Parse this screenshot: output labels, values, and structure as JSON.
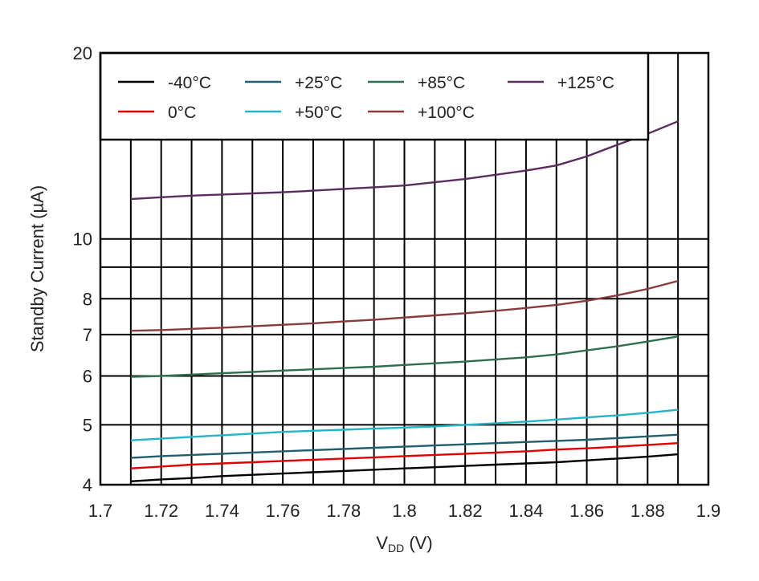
{
  "chart_data": {
    "type": "line",
    "title": "",
    "xlabel": "V_DD (V)",
    "xlabel_main": "V",
    "xlabel_sub": "DD",
    "xlabel_unit": " (V)",
    "ylabel": "Standby Current (µA)",
    "x_scale": "linear",
    "y_scale": "log",
    "xlim": [
      1.7,
      1.9
    ],
    "ylim": [
      4,
      20
    ],
    "x_ticks": [
      "1.7",
      "1.72",
      "1.74",
      "1.76",
      "1.78",
      "1.8",
      "1.82",
      "1.84",
      "1.86",
      "1.88",
      "1.9"
    ],
    "y_ticks": [
      "4",
      "5",
      "6",
      "7",
      "8",
      "10",
      "20"
    ],
    "grid": true,
    "legend_position": "top",
    "x": [
      1.71,
      1.72,
      1.73,
      1.74,
      1.75,
      1.76,
      1.77,
      1.78,
      1.79,
      1.8,
      1.81,
      1.82,
      1.83,
      1.84,
      1.85,
      1.86,
      1.87,
      1.88,
      1.89
    ],
    "series": [
      {
        "name": "-40°C",
        "color": "#000000",
        "values": [
          4.05,
          4.08,
          4.1,
          4.13,
          4.15,
          4.17,
          4.19,
          4.21,
          4.23,
          4.25,
          4.27,
          4.29,
          4.31,
          4.33,
          4.35,
          4.38,
          4.41,
          4.44,
          4.48
        ]
      },
      {
        "name": "0°C",
        "color": "#e00000",
        "values": [
          4.25,
          4.28,
          4.31,
          4.33,
          4.35,
          4.37,
          4.39,
          4.41,
          4.43,
          4.45,
          4.47,
          4.49,
          4.51,
          4.53,
          4.56,
          4.58,
          4.61,
          4.64,
          4.67
        ]
      },
      {
        "name": "+25°C",
        "color": "#1f5f6f",
        "values": [
          4.42,
          4.45,
          4.47,
          4.49,
          4.51,
          4.53,
          4.55,
          4.57,
          4.59,
          4.61,
          4.63,
          4.65,
          4.67,
          4.69,
          4.71,
          4.73,
          4.76,
          4.79,
          4.82
        ]
      },
      {
        "name": "+50°C",
        "color": "#22b5c8",
        "values": [
          4.72,
          4.75,
          4.78,
          4.81,
          4.84,
          4.87,
          4.89,
          4.91,
          4.93,
          4.95,
          4.97,
          5.0,
          5.03,
          5.06,
          5.1,
          5.14,
          5.18,
          5.23,
          5.29
        ]
      },
      {
        "name": "+85°C",
        "color": "#2f6f4f",
        "values": [
          5.98,
          6.0,
          6.03,
          6.06,
          6.09,
          6.12,
          6.15,
          6.18,
          6.21,
          6.25,
          6.29,
          6.33,
          6.38,
          6.43,
          6.5,
          6.6,
          6.7,
          6.82,
          6.95
        ]
      },
      {
        "name": "+100°C",
        "color": "#8a3a3a",
        "values": [
          7.1,
          7.12,
          7.15,
          7.18,
          7.22,
          7.26,
          7.3,
          7.35,
          7.4,
          7.46,
          7.52,
          7.58,
          7.65,
          7.73,
          7.82,
          7.94,
          8.1,
          8.3,
          8.55
        ]
      },
      {
        "name": "+125°C",
        "color": "#5a2d5e",
        "values": [
          11.6,
          11.68,
          11.75,
          11.8,
          11.85,
          11.9,
          11.97,
          12.05,
          12.12,
          12.2,
          12.35,
          12.5,
          12.7,
          12.9,
          13.15,
          13.6,
          14.2,
          14.8,
          15.5
        ]
      }
    ]
  }
}
